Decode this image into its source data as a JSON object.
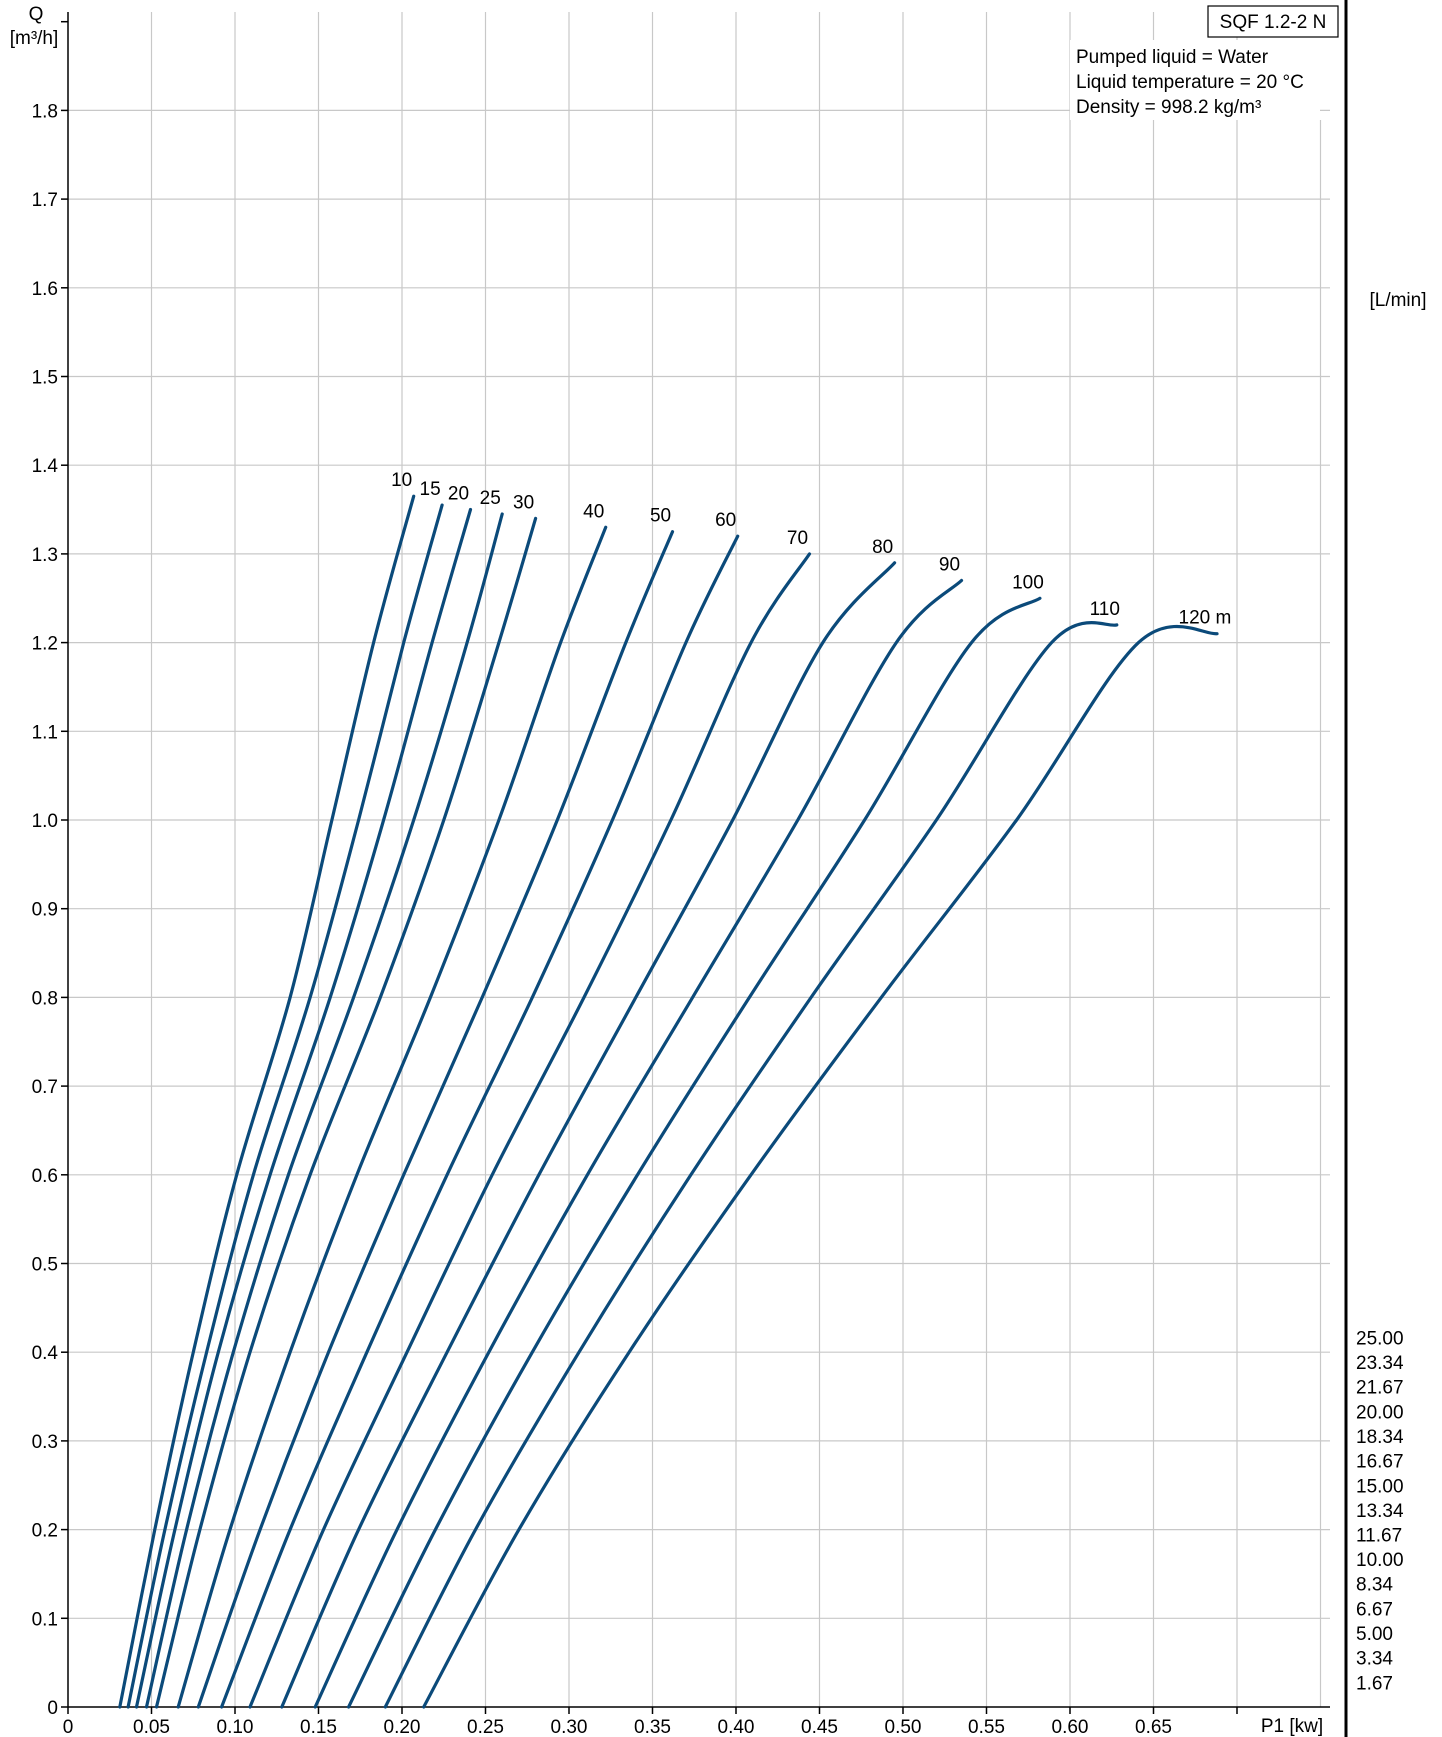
{
  "model": "SQF 1.2-2 N",
  "info_lines": [
    "Pumped liquid = Water",
    "Liquid temperature = 20 °C",
    "Density = 998.2 kg/m³"
  ],
  "chart_data": {
    "type": "line",
    "title": "SQF 1.2-2 N",
    "xlabel": "P1 [kw]",
    "ylabel_line1": "Q",
    "ylabel_line2": "[m³/h]",
    "y2label": "[L/min]",
    "xlim": [
      0,
      0.75
    ],
    "ylim": [
      0,
      1.9
    ],
    "grid": true,
    "x_ticks": [
      "0",
      "0.05",
      "0.10",
      "0.15",
      "0.20",
      "0.25",
      "0.30",
      "0.35",
      "0.40",
      "0.45",
      "0.50",
      "0.55",
      "0.60",
      "0.65"
    ],
    "y_ticks": [
      "0",
      "0.1",
      "0.2",
      "0.3",
      "0.4",
      "0.5",
      "0.6",
      "0.7",
      "0.8",
      "0.9",
      "1.0",
      "1.1",
      "1.2",
      "1.3",
      "1.4",
      "1.5",
      "1.6",
      "1.7",
      "1.8"
    ],
    "y2_ticks": [
      "1.67",
      "3.34",
      "5.00",
      "6.67",
      "8.34",
      "10.00",
      "11.67",
      "13.34",
      "15.00",
      "16.67",
      "18.34",
      "20.00",
      "21.67",
      "23.34",
      "25.00"
    ],
    "series": [
      {
        "name": "10",
        "label": "10",
        "x": [
          0.031,
          0.052,
          0.075,
          0.101,
          0.133,
          0.158,
          0.183,
          0.207
        ],
        "y": [
          0,
          0.2,
          0.4,
          0.6,
          0.8,
          1.0,
          1.2,
          1.365
        ]
      },
      {
        "name": "15",
        "label": "15",
        "x": [
          0.036,
          0.058,
          0.083,
          0.111,
          0.145,
          0.174,
          0.201,
          0.224
        ],
        "y": [
          0,
          0.2,
          0.4,
          0.6,
          0.8,
          1.0,
          1.2,
          1.355
        ]
      },
      {
        "name": "20",
        "label": "20",
        "x": [
          0.041,
          0.064,
          0.09,
          0.121,
          0.157,
          0.189,
          0.218,
          0.241
        ],
        "y": [
          0,
          0.2,
          0.4,
          0.6,
          0.8,
          1.0,
          1.2,
          1.35
        ]
      },
      {
        "name": "25",
        "label": "25",
        "x": [
          0.047,
          0.071,
          0.099,
          0.132,
          0.171,
          0.207,
          0.239,
          0.26
        ],
        "y": [
          0,
          0.2,
          0.4,
          0.6,
          0.8,
          1.0,
          1.2,
          1.345
        ]
      },
      {
        "name": "30",
        "label": "30",
        "x": [
          0.053,
          0.079,
          0.109,
          0.145,
          0.187,
          0.225,
          0.258,
          0.28
        ],
        "y": [
          0,
          0.2,
          0.4,
          0.6,
          0.8,
          1.0,
          1.2,
          1.34
        ]
      },
      {
        "name": "40",
        "label": "40",
        "x": [
          0.066,
          0.097,
          0.133,
          0.173,
          0.217,
          0.258,
          0.295,
          0.322
        ],
        "y": [
          0,
          0.2,
          0.4,
          0.6,
          0.8,
          1.0,
          1.2,
          1.33
        ]
      },
      {
        "name": "50",
        "label": "50",
        "x": [
          0.078,
          0.115,
          0.156,
          0.201,
          0.248,
          0.293,
          0.334,
          0.362
        ],
        "y": [
          0,
          0.2,
          0.4,
          0.6,
          0.8,
          1.0,
          1.2,
          1.325
        ]
      },
      {
        "name": "60",
        "label": "60",
        "x": [
          0.092,
          0.133,
          0.179,
          0.227,
          0.278,
          0.326,
          0.37,
          0.401
        ],
        "y": [
          0,
          0.2,
          0.4,
          0.6,
          0.8,
          1.0,
          1.2,
          1.32
        ]
      },
      {
        "name": "70",
        "label": "70",
        "x": [
          0.109,
          0.153,
          0.203,
          0.254,
          0.309,
          0.361,
          0.409,
          0.444
        ],
        "y": [
          0,
          0.2,
          0.4,
          0.6,
          0.8,
          1.0,
          1.2,
          1.3
        ]
      },
      {
        "name": "80",
        "label": "80",
        "x": [
          0.128,
          0.174,
          0.227,
          0.282,
          0.34,
          0.398,
          0.452,
          0.495
        ],
        "y": [
          0,
          0.2,
          0.4,
          0.6,
          0.8,
          1.0,
          1.2,
          1.29
        ]
      },
      {
        "name": "90",
        "label": "90",
        "x": [
          0.148,
          0.197,
          0.252,
          0.311,
          0.374,
          0.437,
          0.496,
          0.535
        ],
        "y": [
          0,
          0.2,
          0.4,
          0.6,
          0.8,
          1.0,
          1.2,
          1.27
        ]
      },
      {
        "name": "100",
        "label": "100",
        "x": [
          0.168,
          0.22,
          0.278,
          0.341,
          0.408,
          0.477,
          0.541,
          0.582
        ],
        "y": [
          0,
          0.2,
          0.4,
          0.6,
          0.8,
          1.0,
          1.2,
          1.25
        ]
      },
      {
        "name": "110",
        "label": "110",
        "x": [
          0.19,
          0.244,
          0.306,
          0.373,
          0.445,
          0.52,
          0.589,
          0.628
        ],
        "y": [
          0,
          0.2,
          0.4,
          0.6,
          0.8,
          1.0,
          1.2,
          1.22
        ]
      },
      {
        "name": "120 m",
        "label": "120 m",
        "x": [
          0.213,
          0.27,
          0.336,
          0.409,
          0.487,
          0.568,
          0.641,
          0.688
        ],
        "y": [
          0,
          0.2,
          0.4,
          0.6,
          0.8,
          1.0,
          1.2,
          1.21
        ]
      }
    ],
    "series_color": "#0b4a7a"
  }
}
